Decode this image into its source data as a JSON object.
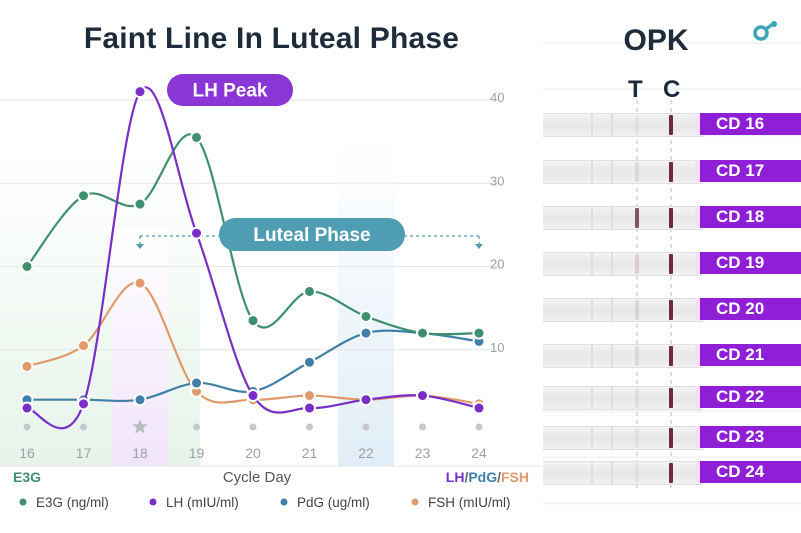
{
  "chart_data": {
    "type": "line",
    "title": "Faint Line In Luteal Phase",
    "xlabel": "Cycle Day",
    "ylabel_left": "E3G",
    "ylabel_right_parts": [
      "LH",
      "/",
      "PdG",
      "/",
      "FSH"
    ],
    "categories": [
      "16",
      "17",
      "18",
      "19",
      "20",
      "21",
      "22",
      "23",
      "24"
    ],
    "y_ticks": [
      "10",
      "20",
      "30",
      "40"
    ],
    "ylim": [
      0,
      42
    ],
    "series": [
      {
        "name": "E3G (ng/ml)",
        "color": "#3d8f70",
        "values": [
          20,
          28.5,
          27.5,
          35.5,
          13.5,
          17,
          14,
          12,
          12
        ]
      },
      {
        "name": "LH (mIU/ml)",
        "color": "#7a2ec8",
        "values": [
          3,
          3.5,
          41,
          24,
          4.5,
          3,
          4,
          4.5,
          3
        ]
      },
      {
        "name": "PdG (ug/ml)",
        "color": "#3f7fa8",
        "values": [
          4,
          4,
          4,
          6,
          5,
          8.5,
          12,
          12,
          11
        ]
      },
      {
        "name": "FSH (mIU/ml)",
        "color": "#e09a6b",
        "values": [
          8,
          10.5,
          18,
          5,
          4,
          4.5,
          4,
          4.5,
          3.5
        ]
      }
    ],
    "annotations": {
      "lh_peak": "LH Peak",
      "luteal_phase": "Luteal Phase",
      "highlight_day": "18",
      "star_day": "18"
    },
    "colors": {
      "accent_purple": "#8a35d6",
      "accent_teal": "#4f9db3",
      "grid": "#e6e6e6",
      "tick": "#9aa0a6"
    }
  },
  "opk": {
    "title": "OPK",
    "test_label": "T",
    "control_label": "C",
    "strips": [
      {
        "day": "CD 16",
        "test_line_strength": 0.05
      },
      {
        "day": "CD 17",
        "test_line_strength": 0.1
      },
      {
        "day": "CD 18",
        "test_line_strength": 0.8
      },
      {
        "day": "CD 19",
        "test_line_strength": 0.15
      },
      {
        "day": "CD 20",
        "test_line_strength": 0.12
      },
      {
        "day": "CD 21",
        "test_line_strength": 0.1
      },
      {
        "day": "CD 22",
        "test_line_strength": 0.08
      },
      {
        "day": "CD 23",
        "test_line_strength": 0.06
      },
      {
        "day": "CD 24",
        "test_line_strength": 0.06
      }
    ],
    "logo_icon": "brand-logo-icon"
  }
}
